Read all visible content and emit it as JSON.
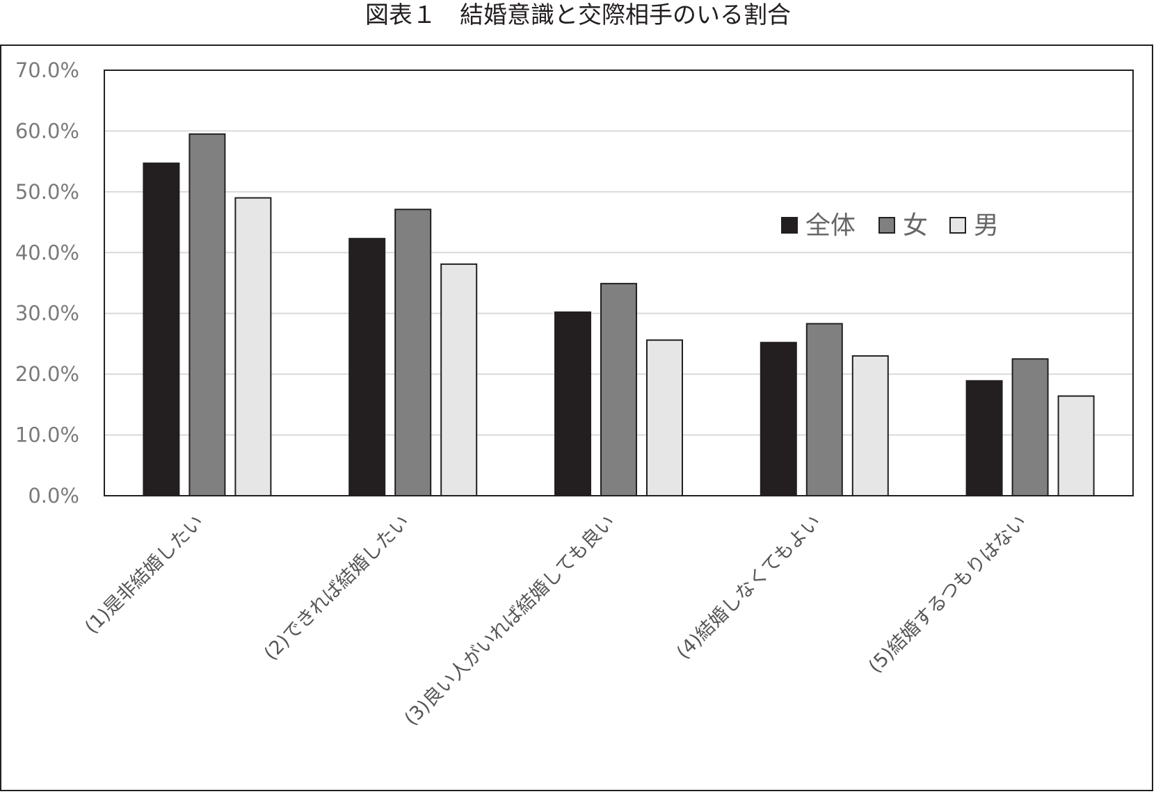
{
  "chart_data": {
    "type": "bar",
    "title": "図表１　結婚意識と交際相手のいる割合",
    "categories": [
      "(1)是非結婚したい",
      "(2)できれば結婚したい",
      "(3)良い人がいれば結婚しても良い",
      "(4)結婚しなくてもよい",
      "(5)結婚するつもりはない"
    ],
    "series": [
      {
        "name": "全体",
        "color": "#231f20",
        "values": [
          0.547,
          0.423,
          0.302,
          0.252,
          0.189
        ]
      },
      {
        "name": "女",
        "color": "#808080",
        "values": [
          0.595,
          0.471,
          0.349,
          0.283,
          0.225
        ]
      },
      {
        "name": "男",
        "color": "#e6e6e6",
        "values": [
          0.49,
          0.381,
          0.256,
          0.23,
          0.164
        ]
      }
    ],
    "yticks": [
      "0.0%",
      "10.0%",
      "20.0%",
      "30.0%",
      "40.0%",
      "50.0%",
      "60.0%",
      "70.0%"
    ],
    "ylim": [
      0,
      0.7
    ],
    "grid": true,
    "legend_position": "upper-right inside plot"
  }
}
